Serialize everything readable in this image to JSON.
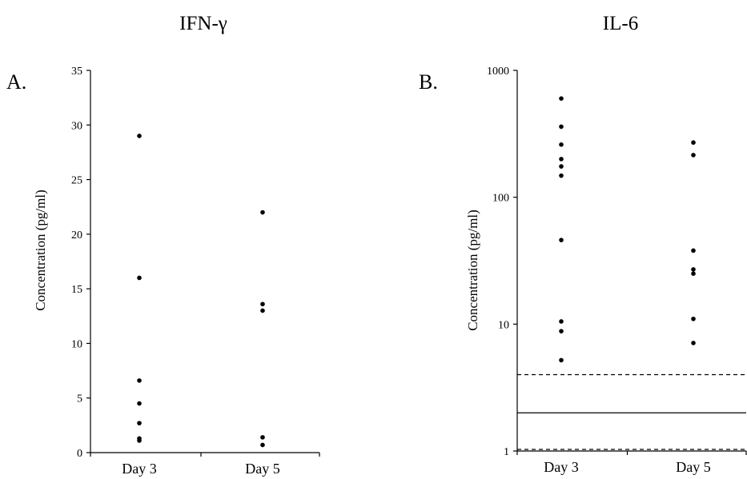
{
  "chart_data": [
    {
      "type": "scatter",
      "title": "IFN-γ",
      "panel_label": "A.",
      "ylabel": "Concentration (pg/ml)",
      "yscale": "linear",
      "ylim": [
        0,
        35
      ],
      "yticks": [
        "0",
        "5",
        "10",
        "15",
        "20",
        "25",
        "30",
        "35"
      ],
      "categories": [
        "Day 3",
        "Day 5"
      ],
      "series": [
        {
          "category": "Day 3",
          "values": [
            29,
            16,
            6.6,
            4.5,
            2.7,
            1.3,
            1.1
          ]
        },
        {
          "category": "Day 5",
          "values": [
            22,
            13.6,
            13,
            1.4,
            0.7
          ]
        }
      ],
      "reference_lines": []
    },
    {
      "type": "scatter",
      "title": "IL-6",
      "panel_label": "B.",
      "ylabel": "Concentration (pg/ml)",
      "yscale": "log",
      "ylim": [
        1,
        1000
      ],
      "yticks": [
        "1",
        "10",
        "100",
        "1000"
      ],
      "categories": [
        "Day 3",
        "Day 5"
      ],
      "series": [
        {
          "category": "Day 3",
          "values": [
            600,
            360,
            260,
            200,
            175,
            148,
            46,
            10.5,
            8.8,
            5.2
          ]
        },
        {
          "category": "Day 5",
          "values": [
            270,
            215,
            38,
            27,
            25,
            11,
            7.1
          ]
        }
      ],
      "reference_lines": [
        {
          "value": 4.0,
          "style": "dashed"
        },
        {
          "value": 2.0,
          "style": "solid"
        },
        {
          "value": 1.03,
          "style": "dashed"
        }
      ]
    }
  ]
}
